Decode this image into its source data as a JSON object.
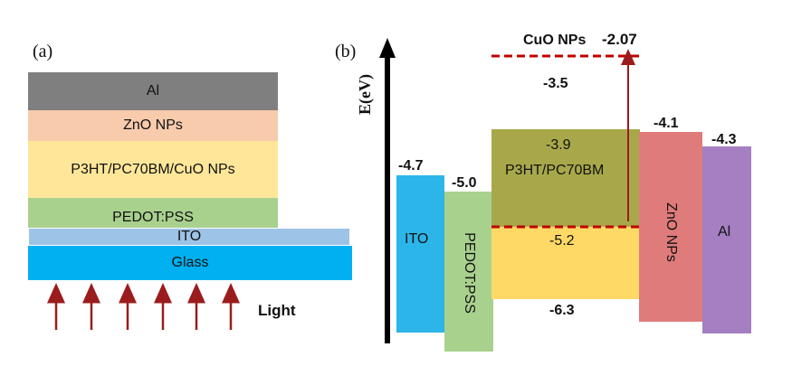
{
  "panel_a": {
    "label": "(a)",
    "layers": {
      "al": "Al",
      "zno": "ZnO NPs",
      "active": "P3HT/PC70BM/CuO NPs",
      "pedot": "PEDOT:PSS",
      "ito": "ITO",
      "glass": "Glass"
    },
    "light_label": "Light",
    "colors": {
      "al": "#7f7f7f",
      "zno": "#f8cbad",
      "active": "#ffe699",
      "pedot": "#a9d18e",
      "ito": "#9dc3e6",
      "glass": "#00b0f0",
      "arrow": "#9b1c1c"
    }
  },
  "panel_b": {
    "label": "(b)",
    "axis_label": "E(eV)",
    "cuo": {
      "label": "CuO NPs",
      "value": "-2.07"
    },
    "levels": {
      "ito": {
        "label": "ITO",
        "value": "-4.7"
      },
      "pedot": {
        "label": "PEDOT:PSS",
        "value": "-5.0"
      },
      "p3ht": {
        "label": "P3HT/PC70BM",
        "lumo": "-3.9",
        "homo": "-5.2",
        "deep": "-6.3",
        "cuo_level": "-3.5"
      },
      "zno": {
        "label": "ZnO NPs",
        "value": "-4.1"
      },
      "al": {
        "label": "Al",
        "value": "-4.3"
      }
    },
    "colors": {
      "ito": "#2cb5e9",
      "pedot": "#a9d18e",
      "p3ht_top": "#a8a84a",
      "p3ht_bottom": "#ffd966",
      "zno": "#e07b7b",
      "al": "#a57fc2",
      "dashed": "#c00000",
      "arrow": "#9b1c1c"
    }
  }
}
